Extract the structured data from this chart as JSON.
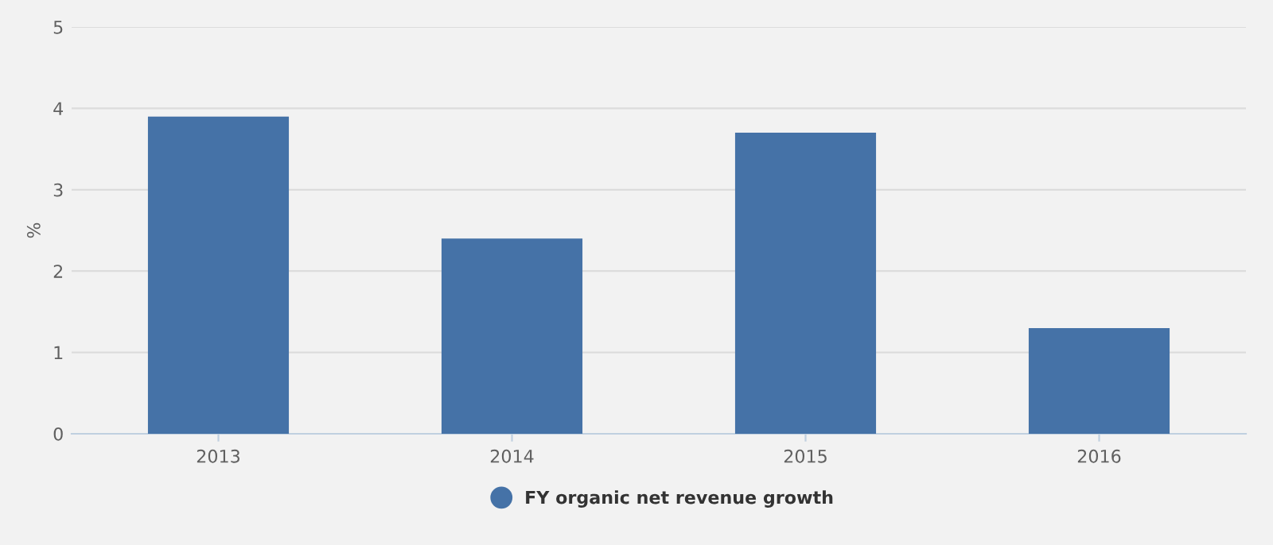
{
  "chart_data": {
    "type": "bar",
    "ylabel": "%",
    "categories": [
      "2013",
      "2014",
      "2015",
      "2016"
    ],
    "series": [
      {
        "name": "FY organic net revenue growth",
        "color": "#4572a7",
        "values": [
          3.9,
          2.4,
          3.7,
          1.3
        ]
      }
    ],
    "ylim": [
      0,
      5
    ],
    "yticks": [
      0,
      1,
      2,
      3,
      4,
      5
    ],
    "grid": "y",
    "legend": "bottom"
  }
}
